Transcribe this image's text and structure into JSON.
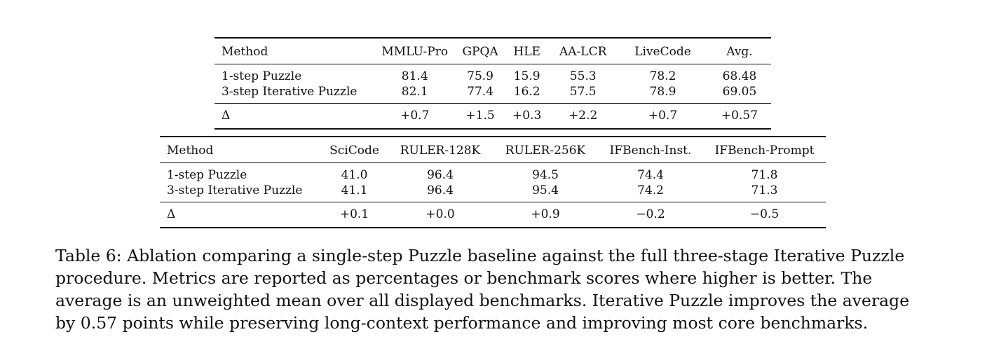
{
  "table_top": {
    "headers": [
      "Method",
      "MMLU-Pro",
      "GPQA",
      "HLE",
      "AA-LCR",
      "LiveCode",
      "Avg."
    ],
    "rows": [
      {
        "method": "1-step Puzzle",
        "values": [
          "81.4",
          "75.9",
          "15.9",
          "55.3",
          "78.2",
          "68.48"
        ]
      },
      {
        "method": "3-step Iterative Puzzle",
        "values": [
          "82.1",
          "77.4",
          "16.2",
          "57.5",
          "78.9",
          "69.05"
        ]
      }
    ],
    "delta": {
      "method": "Δ",
      "values": [
        "+0.7",
        "+1.5",
        "+0.3",
        "+2.2",
        "+0.7",
        "+0.57"
      ]
    }
  },
  "table_bottom": {
    "headers": [
      "Method",
      "SciCode",
      "RULER-128K",
      "RULER-256K",
      "IFBench-Inst.",
      "IFBench-Prompt"
    ],
    "rows": [
      {
        "method": "1-step Puzzle",
        "values": [
          "41.0",
          "96.4",
          "94.5",
          "74.4",
          "71.8"
        ]
      },
      {
        "method": "3-step Iterative Puzzle",
        "values": [
          "41.1",
          "96.4",
          "95.4",
          "74.2",
          "71.3"
        ]
      }
    ],
    "delta": {
      "method": "Δ",
      "values": [
        "+0.1",
        "+0.0",
        "+0.9",
        "−0.2",
        "−0.5"
      ]
    }
  },
  "caption": "Table 6: Ablation comparing a single-step Puzzle baseline against the full three-stage Iterative Puzzle procedure. Metrics are reported as percentages or benchmark scores where higher is better. The average is an unweighted mean over all displayed benchmarks. Iterative Puzzle improves the average by 0.57 points while preserving long-context performance and improving most core benchmarks."
}
